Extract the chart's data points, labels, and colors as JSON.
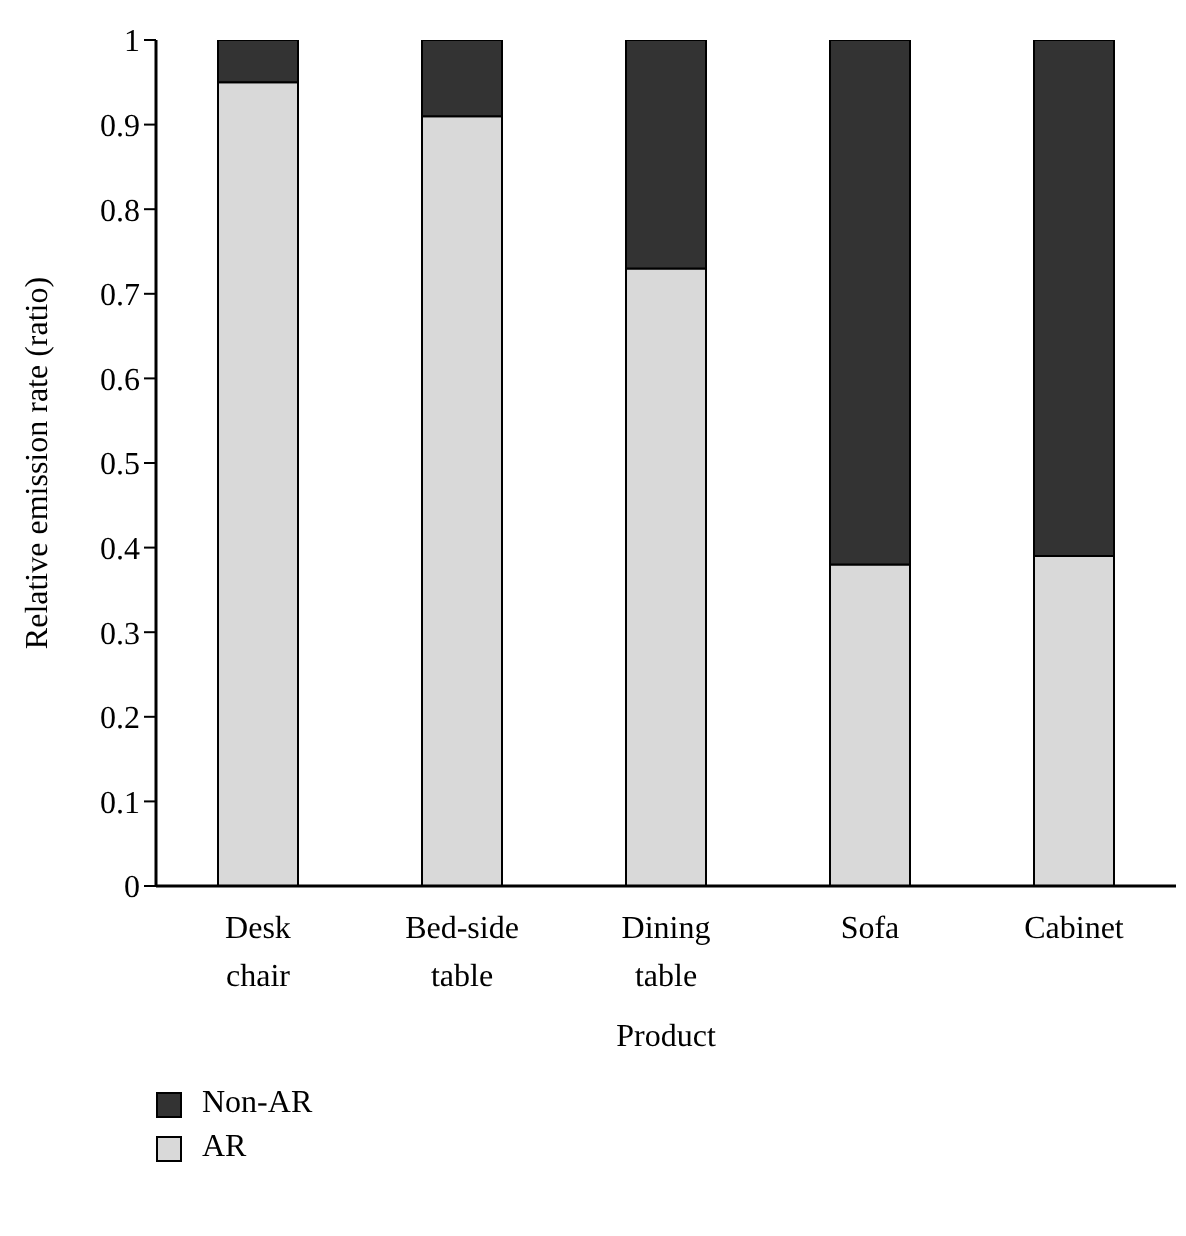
{
  "chart_data": {
    "type": "bar",
    "stacked": true,
    "xlabel": "Product",
    "ylabel": "Relative emission rate (ratio)",
    "categories": [
      "Desk chair",
      "Bed-side table",
      "Dining table",
      "Sofa",
      "Cabinet"
    ],
    "series": [
      {
        "name": "AR",
        "color": "#d9d9d9",
        "values": [
          0.95,
          0.91,
          0.73,
          0.38,
          0.39
        ]
      },
      {
        "name": "Non-AR",
        "color": "#333333",
        "values": [
          0.05,
          0.09,
          0.27,
          0.62,
          0.61
        ]
      }
    ],
    "ylim": [
      0,
      1
    ],
    "yticks": [
      0,
      0.1,
      0.2,
      0.3,
      0.4,
      0.5,
      0.6,
      0.7,
      0.8,
      0.9,
      1
    ],
    "grid": false,
    "legend": "bottom left"
  }
}
